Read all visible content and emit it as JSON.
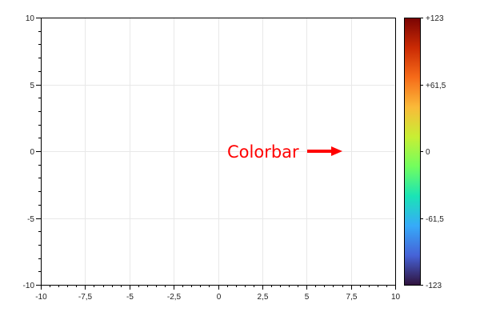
{
  "chart_data": {
    "type": "heatmap",
    "title": "",
    "xlabel": "",
    "ylabel": "",
    "xlim": [
      -10,
      10
    ],
    "ylim": [
      -10,
      10
    ],
    "x_ticks": [
      -10,
      -7.5,
      -5,
      -2.5,
      0,
      2.5,
      5,
      7.5,
      10
    ],
    "x_tick_labels": [
      "-10",
      "-7,5",
      "-5",
      "-2,5",
      "0",
      "2,5",
      "5",
      "7,5",
      "10"
    ],
    "y_ticks": [
      -10,
      -5,
      0,
      5,
      10
    ],
    "y_tick_labels": [
      "-10",
      "-5",
      "0",
      "5",
      "10"
    ],
    "grid": true,
    "data": [],
    "colorbar": {
      "range": [
        -123,
        123
      ],
      "ticks": [
        123,
        61.5,
        0,
        -61.5,
        -123
      ],
      "tick_labels": [
        "+123",
        "+61,5",
        "0",
        "-61,5",
        "-123"
      ],
      "colors": [
        "#30123b",
        "#4662d7",
        "#36aaf9",
        "#1ae4b6",
        "#72fe5e",
        "#c8ef34",
        "#faba39",
        "#f66b19",
        "#ca2a04",
        "#7a0403"
      ]
    },
    "annotation": {
      "text": "Colorbar",
      "color": "#ff0000",
      "arrow_direction": "right"
    }
  }
}
